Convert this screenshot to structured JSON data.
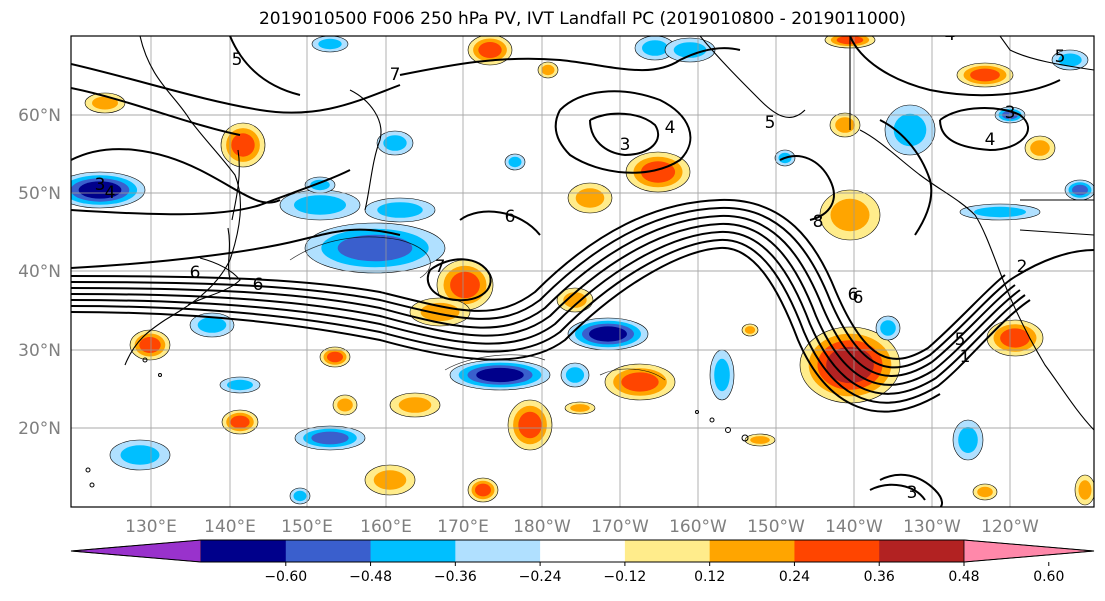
{
  "title": "2019010500 F006 250 hPa PV, IVT Landfall PC (2019010800 - 2019011000)",
  "lat_labels": [
    "60°N",
    "50°N",
    "40°N",
    "30°N",
    "20°N"
  ],
  "lon_labels": [
    "130°E",
    "140°E",
    "150°E",
    "160°E",
    "170°E",
    "180°W",
    "170°W",
    "160°W",
    "150°W",
    "140°W",
    "130°W",
    "120°W"
  ],
  "colorbar": {
    "ticks": [
      "−0.60",
      "−0.48",
      "−0.36",
      "−0.24",
      "−0.12",
      "0.12",
      "0.24",
      "0.36",
      "0.48",
      "0.60"
    ],
    "colors": [
      "#9932cc",
      "#00008b",
      "#3a5fcd",
      "#00bfff",
      "#b0e0ff",
      "#ffffff",
      "#ffec8b",
      "#ffa500",
      "#ff4500",
      "#b22222",
      "#ff88aa"
    ]
  },
  "fill_colors": {
    "neg_weak": "#b0e0ff",
    "neg_mid": "#00bfff",
    "neg_strong": "#3a5fcd",
    "neg_max": "#00008b",
    "pos_weak": "#ffec8b",
    "pos_mid": "#ffa500",
    "pos_strong": "#ff4500",
    "pos_max": "#b22222"
  },
  "contour_labels": [
    "5",
    "7",
    "3",
    "4",
    "6",
    "6",
    "7",
    "6",
    "5",
    "3",
    "4",
    "6",
    "8",
    "6",
    "5",
    "1",
    "2",
    "4",
    "5",
    "3",
    "4",
    "3"
  ]
}
